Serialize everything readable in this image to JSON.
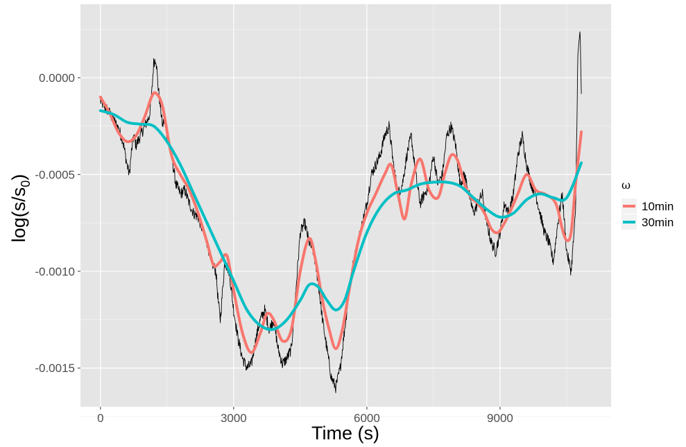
{
  "chart_data": {
    "type": "line",
    "xlabel": "Time (s)",
    "ylabel_main": "log(s/s",
    "ylabel_sub": "0",
    "ylabel_close": ")",
    "xlim": [
      -450,
      11500
    ],
    "ylim": [
      -0.0017,
      0.00038
    ],
    "x_ticks": [
      0,
      3000,
      6000,
      9000
    ],
    "x_tick_labels": [
      "0",
      "3000",
      "6000",
      "9000"
    ],
    "y_ticks": [
      0.0,
      -0.0005,
      -0.001,
      -0.0015
    ],
    "y_tick_labels": [
      "0.0000",
      "-0.0005",
      "-0.0010",
      "-0.0015"
    ],
    "grid": true,
    "legend": {
      "title": "ω",
      "placement": "right"
    },
    "colors": {
      "panel": "#e5e5e5",
      "grid_major": "#ffffff",
      "grid_minor": "#f2f2f2",
      "raw": "#000000"
    },
    "raw_series": {
      "color": "#000000",
      "noise_amplitude": 3e-05,
      "x": [
        0,
        100,
        200,
        300,
        400,
        500,
        600,
        650,
        700,
        750,
        800,
        900,
        1000,
        1100,
        1150,
        1200,
        1250,
        1300,
        1350,
        1400,
        1450,
        1500,
        1600,
        1700,
        1800,
        1900,
        2000,
        2100,
        2200,
        2400,
        2500,
        2600,
        2650,
        2700,
        2800,
        2900,
        3000,
        3100,
        3200,
        3300,
        3400,
        3500,
        3600,
        3700,
        3800,
        3900,
        4000,
        4100,
        4200,
        4300,
        4400,
        4500,
        4600,
        4700,
        4800,
        4900,
        5000,
        5100,
        5200,
        5300,
        5400,
        5500,
        5600,
        5700,
        5800,
        5900,
        6000,
        6100,
        6200,
        6300,
        6400,
        6500,
        6600,
        6700,
        6800,
        6900,
        7000,
        7100,
        7200,
        7300,
        7400,
        7500,
        7600,
        7700,
        7800,
        7900,
        8000,
        8100,
        8200,
        8300,
        8400,
        8500,
        8600,
        8700,
        8800,
        8900,
        9000,
        9100,
        9200,
        9300,
        9400,
        9500,
        9600,
        9700,
        9800,
        9900,
        10000,
        10100,
        10200,
        10300,
        10400,
        10500,
        10600,
        10700,
        10750,
        10800,
        10830
      ],
      "y": [
        -0.00012,
        -0.00015,
        -0.00018,
        -0.00022,
        -0.00026,
        -0.00032,
        -0.00045,
        -0.0005,
        -0.00038,
        -0.0003,
        -0.00035,
        -0.0003,
        -0.00025,
        -0.0002,
        -0.0001,
        8e-05,
        0.0001,
        -5e-05,
        -0.00015,
        -0.00025,
        -0.0002,
        -0.0003,
        -0.0004,
        -0.00055,
        -0.0006,
        -0.00058,
        -0.00065,
        -0.0007,
        -0.00072,
        -0.00085,
        -0.00095,
        -0.001,
        -0.00115,
        -0.00125,
        -0.00095,
        -0.001,
        -0.0012,
        -0.00135,
        -0.00145,
        -0.0015,
        -0.00148,
        -0.00135,
        -0.00125,
        -0.0012,
        -0.0013,
        -0.00125,
        -0.0014,
        -0.00148,
        -0.00145,
        -0.0014,
        -0.0011,
        -0.0008,
        -0.00075,
        -0.00085,
        -0.0009,
        -0.00105,
        -0.00125,
        -0.0014,
        -0.00155,
        -0.0016,
        -0.0015,
        -0.0013,
        -0.0011,
        -0.00095,
        -0.00085,
        -0.00075,
        -0.00065,
        -0.0005,
        -0.00045,
        -0.0004,
        -0.0003,
        -0.00025,
        -0.00045,
        -0.0006,
        -0.00055,
        -0.0004,
        -0.0003,
        -0.0005,
        -0.00065,
        -0.0006,
        -0.00055,
        -0.0004,
        -0.00055,
        -0.0005,
        -0.0003,
        -0.00025,
        -0.00035,
        -0.00055,
        -0.0005,
        -0.0006,
        -0.0007,
        -0.00065,
        -0.0006,
        -0.00075,
        -0.00085,
        -0.0009,
        -0.0008,
        -0.00065,
        -0.0007,
        -0.0006,
        -0.0004,
        -0.0003,
        -0.00045,
        -0.00055,
        -0.0006,
        -0.0007,
        -0.0008,
        -0.00085,
        -0.00095,
        -0.00075,
        -0.0006,
        -0.0009,
        -0.001,
        -0.0007,
        0.0001,
        0.00025,
        -0.0001
      ]
    },
    "series": [
      {
        "name": "10min",
        "color": "#f8766d",
        "x": [
          0,
          200,
          400,
          600,
          800,
          1000,
          1150,
          1250,
          1400,
          1600,
          1800,
          2000,
          2200,
          2400,
          2550,
          2700,
          2850,
          3000,
          3200,
          3400,
          3600,
          3750,
          3900,
          4100,
          4300,
          4500,
          4700,
          4850,
          5000,
          5150,
          5300,
          5450,
          5600,
          5800,
          6000,
          6200,
          6400,
          6550,
          6700,
          6850,
          7000,
          7200,
          7400,
          7600,
          7750,
          7900,
          8050,
          8200,
          8350,
          8500,
          8650,
          8800,
          8950,
          9100,
          9250,
          9400,
          9600,
          9800,
          10000,
          10200,
          10300,
          10400,
          10500,
          10600,
          10700,
          10830
        ],
        "y": [
          -0.0001,
          -0.00018,
          -0.00028,
          -0.00033,
          -0.0003,
          -0.0002,
          -0.0001,
          -8e-05,
          -0.00015,
          -0.0004,
          -0.0005,
          -0.00058,
          -0.0007,
          -0.00085,
          -0.00097,
          -0.00095,
          -0.00092,
          -0.0011,
          -0.00132,
          -0.00142,
          -0.00132,
          -0.00122,
          -0.00125,
          -0.00136,
          -0.0013,
          -0.001,
          -0.00083,
          -0.00095,
          -0.00115,
          -0.0013,
          -0.0014,
          -0.0013,
          -0.0011,
          -0.00085,
          -0.0007,
          -0.0006,
          -0.0005,
          -0.00045,
          -0.0006,
          -0.00073,
          -0.00055,
          -0.00042,
          -0.00058,
          -0.00062,
          -0.0005,
          -0.0004,
          -0.00043,
          -0.00055,
          -0.00062,
          -0.00065,
          -0.0007,
          -0.00078,
          -0.0008,
          -0.00075,
          -0.00068,
          -0.0006,
          -0.0005,
          -0.00058,
          -0.0006,
          -0.00063,
          -0.00068,
          -0.00078,
          -0.00084,
          -0.0008,
          -0.00055,
          -0.00028
        ]
      },
      {
        "name": "30min",
        "color": "#00bfc4",
        "x": [
          0,
          300,
          600,
          900,
          1200,
          1500,
          1800,
          2100,
          2400,
          2700,
          3000,
          3300,
          3600,
          3900,
          4200,
          4500,
          4700,
          4900,
          5100,
          5300,
          5500,
          5700,
          6000,
          6300,
          6600,
          6900,
          7200,
          7500,
          7800,
          8100,
          8400,
          8700,
          9000,
          9300,
          9600,
          9900,
          10200,
          10500,
          10830
        ],
        "y": [
          -0.00017,
          -0.00019,
          -0.00023,
          -0.00024,
          -0.00025,
          -0.00033,
          -0.00045,
          -0.0006,
          -0.00075,
          -0.0009,
          -0.00105,
          -0.0012,
          -0.00128,
          -0.0013,
          -0.00125,
          -0.00115,
          -0.00107,
          -0.00108,
          -0.00115,
          -0.0012,
          -0.00115,
          -0.001,
          -0.0008,
          -0.00067,
          -0.0006,
          -0.00058,
          -0.00055,
          -0.00054,
          -0.00054,
          -0.00056,
          -0.00062,
          -0.00068,
          -0.00072,
          -0.0007,
          -0.00063,
          -0.0006,
          -0.00062,
          -0.00062,
          -0.00044
        ]
      }
    ]
  }
}
